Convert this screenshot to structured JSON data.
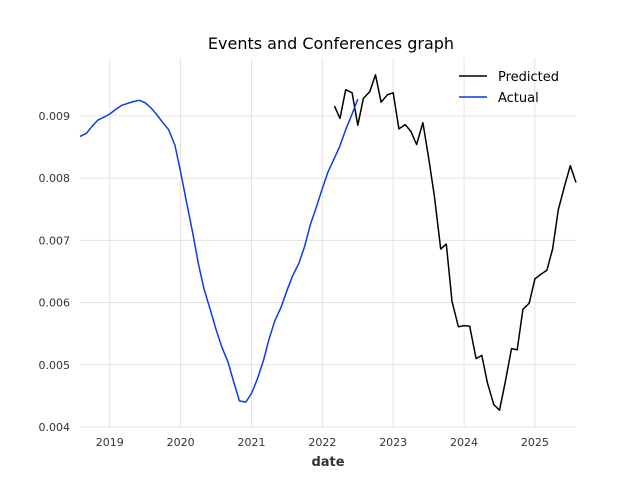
{
  "chart_data": {
    "type": "line",
    "title": "Events and Conferences graph",
    "xlabel": "date",
    "ylabel": "",
    "x_tick_labels": [
      "2019",
      "2020",
      "2021",
      "2022",
      "2023",
      "2024",
      "2025"
    ],
    "y_tick_labels": [
      "0.004",
      "0.005",
      "0.006",
      "0.007",
      "0.008",
      "0.009"
    ],
    "y_ticks": [
      0.004,
      0.005,
      0.006,
      0.007,
      0.008,
      0.009
    ],
    "xlim": [
      2018.58,
      2025.58
    ],
    "ylim": [
      0.004,
      0.00993
    ],
    "grid": true,
    "legend_position": "top-right",
    "colors": {
      "Predicted": "#000000",
      "Actual": "#0b3be6",
      "grid": "#dddddd"
    },
    "series": [
      {
        "name": "Predicted",
        "x": [
          2022.17,
          2022.25,
          2022.33,
          2022.42,
          2022.5,
          2022.58,
          2022.67,
          2022.75,
          2022.83,
          2022.92,
          2023.0,
          2023.08,
          2023.17,
          2023.25,
          2023.33,
          2023.42,
          2023.5,
          2023.58,
          2023.67,
          2023.75,
          2023.83,
          2023.92,
          2024.0,
          2024.08,
          2024.17,
          2024.25,
          2024.33,
          2024.42,
          2024.5,
          2024.58,
          2024.67,
          2024.75,
          2024.83,
          2024.92,
          2025.0,
          2025.08,
          2025.17,
          2025.25,
          2025.33,
          2025.42,
          2025.5,
          2025.58
        ],
        "y": [
          0.00916,
          0.00896,
          0.00942,
          0.00937,
          0.00885,
          0.00928,
          0.00939,
          0.00966,
          0.00922,
          0.00934,
          0.00937,
          0.00879,
          0.00886,
          0.00875,
          0.00854,
          0.00889,
          0.00833,
          0.00772,
          0.00686,
          0.00694,
          0.00602,
          0.00561,
          0.00563,
          0.00562,
          0.0051,
          0.00515,
          0.00471,
          0.00436,
          0.00427,
          0.00471,
          0.00526,
          0.00524,
          0.00589,
          0.00599,
          0.00638,
          0.00645,
          0.00652,
          0.00686,
          0.00749,
          0.00788,
          0.0082,
          0.00793
        ]
      },
      {
        "name": "Actual",
        "x": [
          2018.58,
          2018.67,
          2018.75,
          2018.83,
          2018.92,
          2019.0,
          2019.08,
          2019.17,
          2019.25,
          2019.33,
          2019.42,
          2019.5,
          2019.58,
          2019.67,
          2019.75,
          2019.83,
          2019.92,
          2020.0,
          2020.08,
          2020.17,
          2020.25,
          2020.33,
          2020.42,
          2020.5,
          2020.58,
          2020.67,
          2020.75,
          2020.83,
          2020.92,
          2021.0,
          2021.08,
          2021.17,
          2021.25,
          2021.33,
          2021.42,
          2021.5,
          2021.58,
          2021.67,
          2021.75,
          2021.83,
          2021.92,
          2022.0,
          2022.08,
          2022.17,
          2022.25,
          2022.33,
          2022.42,
          2022.5
        ],
        "y": [
          0.00867,
          0.00872,
          0.00883,
          0.00893,
          0.00898,
          0.00903,
          0.0091,
          0.00917,
          0.0092,
          0.00923,
          0.00925,
          0.00921,
          0.00913,
          0.00901,
          0.00889,
          0.00878,
          0.00853,
          0.0081,
          0.00763,
          0.00712,
          0.00663,
          0.00622,
          0.00588,
          0.00557,
          0.00529,
          0.00504,
          0.00472,
          0.00442,
          0.0044,
          0.00454,
          0.00476,
          0.00507,
          0.00542,
          0.00571,
          0.00593,
          0.00619,
          0.00643,
          0.00663,
          0.0069,
          0.00725,
          0.00755,
          0.00783,
          0.0081,
          0.00832,
          0.00852,
          0.00878,
          0.00903,
          0.00927
        ]
      }
    ]
  }
}
